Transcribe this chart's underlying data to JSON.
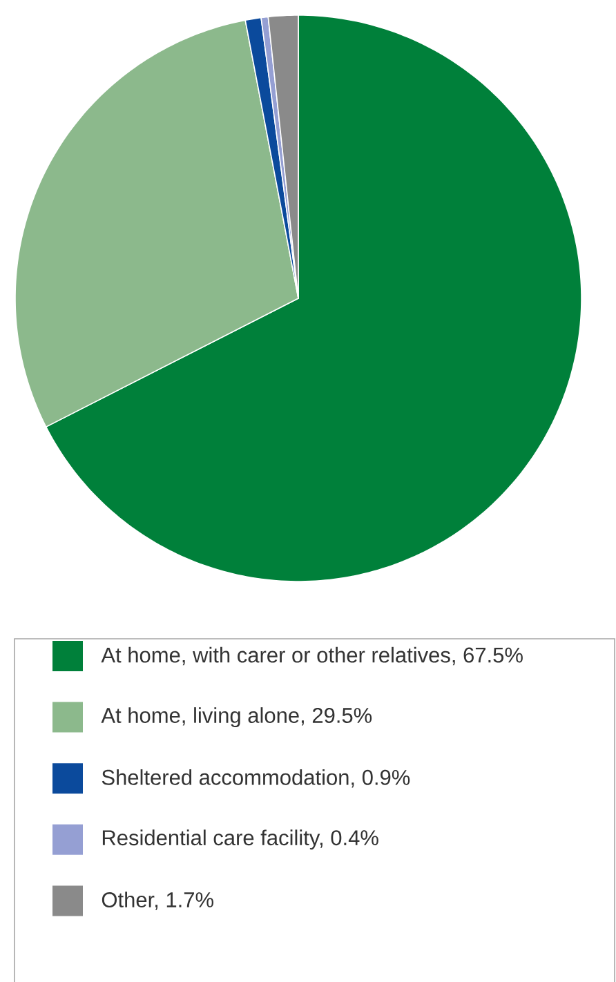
{
  "chart_data": {
    "type": "pie",
    "legend": "bottom",
    "categories": [
      "At home, with carer or other relatives, 67.5%",
      "At home, living alone, 29.5%",
      "Sheltered accommodation, 0.9%",
      "Residential care facility, 0.4%",
      "Other, 1.7%"
    ],
    "values": [
      67.5,
      29.5,
      0.9,
      0.4,
      1.7
    ],
    "colors": [
      "#00803a",
      "#8cb98c",
      "#0b4a9c",
      "#959fd3",
      "#8a8a8a"
    ]
  }
}
